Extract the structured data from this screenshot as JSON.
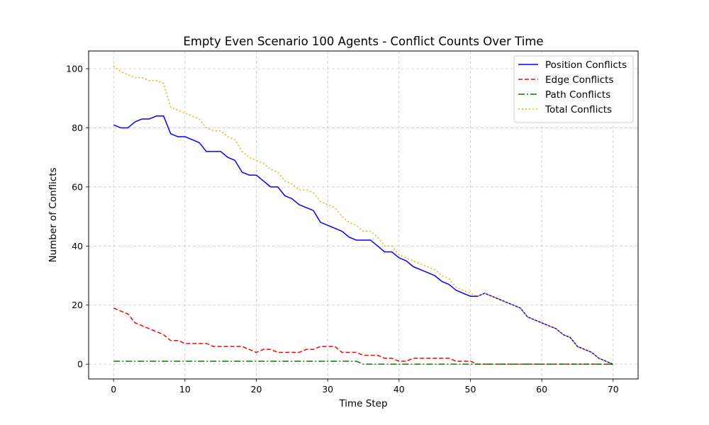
{
  "chart_data": {
    "type": "line",
    "title": "Empty Even Scenario 100 Agents - Conflict Counts Over Time",
    "xlabel": "Time Step",
    "ylabel": "Number of Conflicts",
    "xlim": [
      -3.5,
      73.5
    ],
    "ylim": [
      -5,
      106
    ],
    "xticks": [
      0,
      10,
      20,
      30,
      40,
      50,
      60,
      70
    ],
    "yticks": [
      0,
      20,
      40,
      60,
      80,
      100
    ],
    "grid": true,
    "legend_position": "top-right",
    "x": [
      0,
      1,
      2,
      3,
      4,
      5,
      6,
      7,
      8,
      9,
      10,
      11,
      12,
      13,
      14,
      15,
      16,
      17,
      18,
      19,
      20,
      21,
      22,
      23,
      24,
      25,
      26,
      27,
      28,
      29,
      30,
      31,
      32,
      33,
      34,
      35,
      36,
      37,
      38,
      39,
      40,
      41,
      42,
      43,
      44,
      45,
      46,
      47,
      48,
      49,
      50,
      51,
      52,
      53,
      54,
      55,
      56,
      57,
      58,
      59,
      60,
      61,
      62,
      63,
      64,
      65,
      66,
      67,
      68,
      69,
      70
    ],
    "series": [
      {
        "name": "Position Conflicts",
        "color": "#0000ff",
        "style": "solid",
        "values": [
          81,
          80,
          80,
          82,
          83,
          83,
          84,
          84,
          78,
          77,
          77,
          76,
          75,
          72,
          72,
          72,
          70,
          69,
          65,
          64,
          64,
          62,
          60,
          60,
          57,
          56,
          54,
          53,
          52,
          48,
          47,
          46,
          45,
          43,
          42,
          42,
          42,
          40,
          38,
          38,
          36,
          35,
          33,
          32,
          31,
          30,
          28,
          27,
          25,
          24,
          23,
          23,
          24,
          23,
          22,
          21,
          20,
          19,
          16,
          15,
          14,
          13,
          12,
          10,
          9,
          6,
          5,
          4,
          2,
          1,
          0
        ]
      },
      {
        "name": "Edge Conflicts",
        "color": "#ff0000",
        "style": "dashed",
        "values": [
          19,
          18,
          17,
          14,
          13,
          12,
          11,
          10,
          8,
          8,
          7,
          7,
          7,
          7,
          6,
          6,
          6,
          6,
          6,
          5,
          4,
          5,
          5,
          4,
          4,
          4,
          4,
          5,
          5,
          6,
          6,
          6,
          4,
          4,
          4,
          3,
          3,
          3,
          2,
          2,
          1,
          1,
          2,
          2,
          2,
          2,
          2,
          2,
          1,
          1,
          1,
          0,
          0,
          0,
          0,
          0,
          0,
          0,
          0,
          0,
          0,
          0,
          0,
          0,
          0,
          0,
          0,
          0,
          0,
          0,
          0
        ]
      },
      {
        "name": "Path Conflicts",
        "color": "#008000",
        "style": "dashdot",
        "values": [
          1,
          1,
          1,
          1,
          1,
          1,
          1,
          1,
          1,
          1,
          1,
          1,
          1,
          1,
          1,
          1,
          1,
          1,
          1,
          1,
          1,
          1,
          1,
          1,
          1,
          1,
          1,
          1,
          1,
          1,
          1,
          1,
          1,
          1,
          1,
          0,
          0,
          0,
          0,
          0,
          0,
          0,
          0,
          0,
          0,
          0,
          0,
          0,
          0,
          0,
          0,
          0,
          0,
          0,
          0,
          0,
          0,
          0,
          0,
          0,
          0,
          0,
          0,
          0,
          0,
          0,
          0,
          0,
          0,
          0,
          0
        ]
      },
      {
        "name": "Total Conflicts",
        "color": "#ffa500",
        "style": "dotted",
        "values": [
          101,
          99,
          98,
          97,
          97,
          96,
          96,
          95,
          87,
          86,
          85,
          84,
          83,
          80,
          79,
          79,
          77,
          76,
          72,
          70,
          69,
          68,
          66,
          65,
          62,
          61,
          59,
          59,
          58,
          55,
          54,
          53,
          50,
          48,
          47,
          45,
          45,
          43,
          40,
          40,
          37,
          36,
          35,
          34,
          33,
          32,
          30,
          29,
          26,
          25,
          24,
          23,
          24,
          23,
          22,
          21,
          20,
          19,
          16,
          15,
          14,
          13,
          12,
          10,
          9,
          6,
          5,
          4,
          2,
          1,
          0
        ]
      }
    ]
  }
}
